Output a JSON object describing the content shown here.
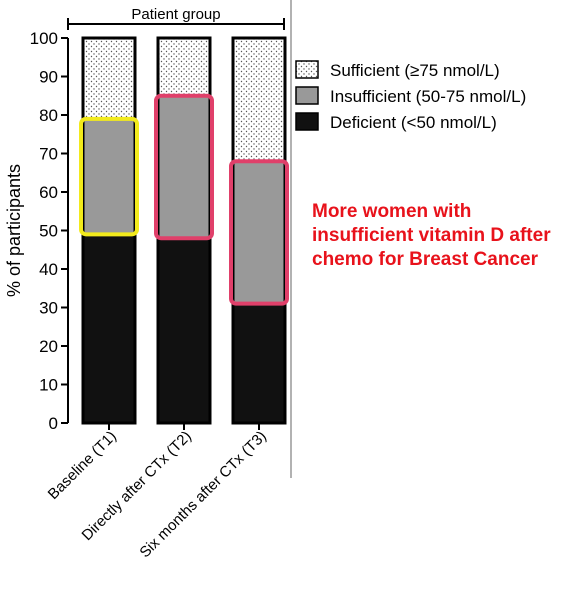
{
  "chart_data": {
    "type": "bar",
    "stacked": true,
    "group_label": "Patient group",
    "ylabel": "% of participants",
    "xlabel": "",
    "ylim": [
      0,
      100
    ],
    "yticks": [
      0,
      10,
      20,
      30,
      40,
      50,
      60,
      70,
      80,
      90,
      100
    ],
    "grid": false,
    "legend_position": "right",
    "categories": [
      "Baseline (T1)",
      "Directly after CTx (T2)",
      "Six months after CTx (T3)"
    ],
    "series": [
      {
        "name": "Deficient (<50 nmol/L)",
        "values": [
          49,
          48,
          31
        ],
        "color": "#111111",
        "pattern": "solid"
      },
      {
        "name": "Insufficient (50-75 nmol/L)",
        "values": [
          30,
          37,
          37
        ],
        "color": "#999999",
        "pattern": "solid"
      },
      {
        "name": "Sufficient (≥75 nmol/L)",
        "values": [
          21,
          15,
          32
        ],
        "color": "#ffffff",
        "pattern": "dots"
      }
    ],
    "highlights": [
      {
        "category": "Baseline (T1)",
        "series": "Insufficient (50-75 nmol/L)",
        "color": "#f2ea1c"
      },
      {
        "category": "Directly after CTx (T2)",
        "series": "Insufficient (50-75 nmol/L)",
        "color": "#e0406a"
      },
      {
        "category": "Six months after CTx (T3)",
        "series": "Insufficient (50-75 nmol/L)",
        "color": "#e0406a"
      }
    ],
    "annotation": "More women with insufficient vitamin D after chemo for Breast Cancer"
  }
}
